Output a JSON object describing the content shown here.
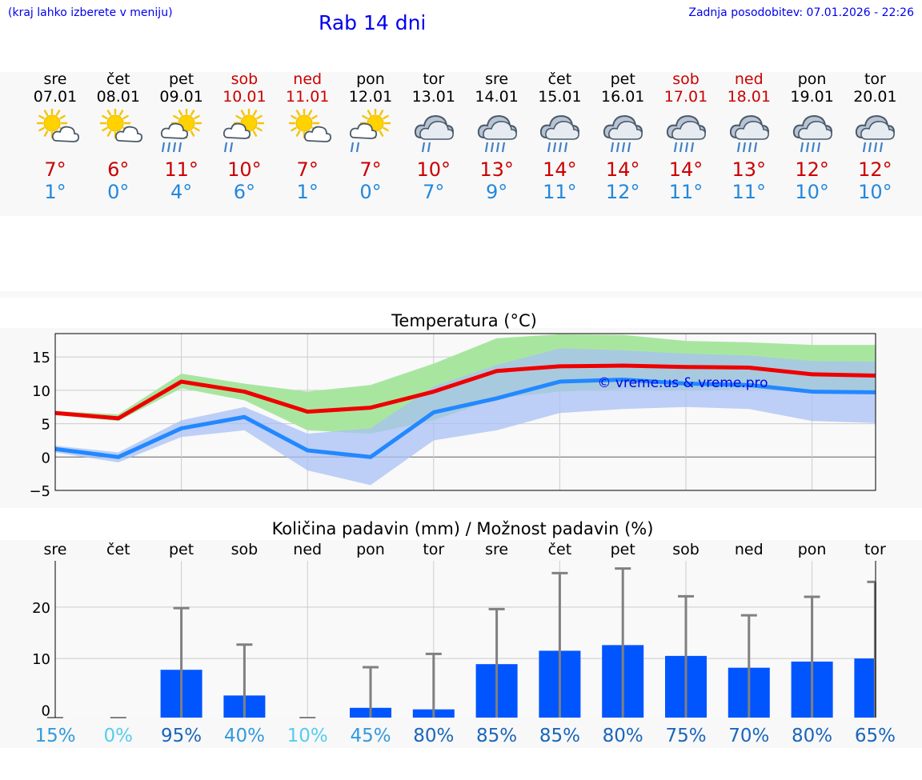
{
  "header": {
    "left_note": "(kraj lahko izberete v meniju)",
    "title": "Rab 14 dni",
    "updated": "Zadnja posodobitev: 07.01.2026 - 22:26"
  },
  "days": [
    {
      "name": "sre",
      "date": "07.01",
      "weekend": false,
      "icon": "sun-cloud-icon",
      "tmax": "7°",
      "tmin": "1°"
    },
    {
      "name": "čet",
      "date": "08.01",
      "weekend": false,
      "icon": "sun-cloud-icon",
      "tmax": "6°",
      "tmin": "0°"
    },
    {
      "name": "pet",
      "date": "09.01",
      "weekend": false,
      "icon": "sun-cloud-rain-icon",
      "tmax": "11°",
      "tmin": "4°"
    },
    {
      "name": "sob",
      "date": "10.01",
      "weekend": true,
      "icon": "sun-cloud-light-rain-icon",
      "tmax": "10°",
      "tmin": "6°"
    },
    {
      "name": "ned",
      "date": "11.01",
      "weekend": true,
      "icon": "sun-cloud-icon",
      "tmax": "7°",
      "tmin": "1°"
    },
    {
      "name": "pon",
      "date": "12.01",
      "weekend": false,
      "icon": "sun-cloud-light-rain-icon",
      "tmax": "7°",
      "tmin": "0°"
    },
    {
      "name": "tor",
      "date": "13.01",
      "weekend": false,
      "icon": "cloud-light-rain-icon",
      "tmax": "10°",
      "tmin": "7°"
    },
    {
      "name": "sre",
      "date": "14.01",
      "weekend": false,
      "icon": "cloud-rain-icon",
      "tmax": "13°",
      "tmin": "9°"
    },
    {
      "name": "čet",
      "date": "15.01",
      "weekend": false,
      "icon": "cloud-rain-icon",
      "tmax": "14°",
      "tmin": "11°"
    },
    {
      "name": "pet",
      "date": "16.01",
      "weekend": false,
      "icon": "cloud-rain-icon",
      "tmax": "14°",
      "tmin": "12°"
    },
    {
      "name": "sob",
      "date": "17.01",
      "weekend": true,
      "icon": "cloud-rain-icon",
      "tmax": "14°",
      "tmin": "11°"
    },
    {
      "name": "ned",
      "date": "18.01",
      "weekend": true,
      "icon": "cloud-rain-icon",
      "tmax": "13°",
      "tmin": "11°"
    },
    {
      "name": "pon",
      "date": "19.01",
      "weekend": false,
      "icon": "cloud-rain-icon",
      "tmax": "12°",
      "tmin": "10°"
    },
    {
      "name": "tor",
      "date": "20.01",
      "weekend": false,
      "icon": "cloud-rain-icon",
      "tmax": "12°",
      "tmin": "10°"
    }
  ],
  "colors": {
    "tmax": "#ee0000",
    "tmin": "#2288ff",
    "tmax_band": "#a8e6a0",
    "tmin_band": "#a8c0f4",
    "overlap_band": "#78c0a8",
    "precip_bar": "#0055ff",
    "whisker": "#808080"
  },
  "chart_data": [
    {
      "type": "line",
      "title": "Temperatura (°C)",
      "watermark": "© vreme.us & vreme.pro",
      "ylim": [
        -5,
        18.5
      ],
      "yticks": [
        -5,
        0,
        5,
        10,
        15
      ],
      "ytick_labels": [
        "−5",
        "0",
        "5",
        "10",
        "15"
      ],
      "series": [
        {
          "name": "tmax",
          "values": [
            6.6,
            5.8,
            11.3,
            9.8,
            6.8,
            7.4,
            9.8,
            12.9,
            13.6,
            13.7,
            13.5,
            13.4,
            12.4,
            12.2
          ]
        },
        {
          "name": "tmin",
          "values": [
            1.2,
            0.0,
            4.3,
            6.0,
            1.0,
            0.0,
            6.7,
            8.8,
            11.3,
            11.6,
            11.0,
            10.8,
            9.8,
            9.7
          ]
        }
      ],
      "bands": [
        {
          "name": "tmax_range",
          "low": [
            6.3,
            5.4,
            10.3,
            8.5,
            4.0,
            3.5,
            5.5,
            8.8,
            9.8,
            10.2,
            10.0,
            10.2,
            9.8,
            9.8
          ],
          "high": [
            6.9,
            6.4,
            12.5,
            11.0,
            9.8,
            10.8,
            14.0,
            17.8,
            18.4,
            18.3,
            17.4,
            17.2,
            16.8,
            16.8
          ]
        },
        {
          "name": "tmin_range",
          "low": [
            0.7,
            -0.8,
            3.0,
            4.0,
            -2.0,
            -4.2,
            2.5,
            4.0,
            6.6,
            7.2,
            7.5,
            7.2,
            5.4,
            5.1
          ],
          "high": [
            1.7,
            0.7,
            5.5,
            7.5,
            3.5,
            4.3,
            10.6,
            13.8,
            16.3,
            16.0,
            15.5,
            15.2,
            14.4,
            14.3
          ]
        }
      ]
    },
    {
      "type": "bar",
      "title": "Količina padavin (mm) / Možnost padavin (%)",
      "categories": [
        "sre",
        "čet",
        "pet",
        "sob",
        "ned",
        "pon",
        "tor",
        "sre",
        "čet",
        "pet",
        "sob",
        "ned",
        "pon",
        "tor"
      ],
      "ylim": [
        -1.5,
        29
      ],
      "yticks": [
        0,
        10,
        20
      ],
      "ytick_labels": [
        "0",
        "10",
        "20"
      ],
      "values": [
        0,
        0,
        7.8,
        2.8,
        0,
        0.4,
        0.1,
        8.9,
        11.5,
        12.6,
        10.5,
        8.2,
        9.4,
        10.0
      ],
      "whisker_max": [
        0,
        0,
        19.8,
        12.7,
        0,
        8.3,
        10.9,
        19.6,
        26.6,
        27.5,
        22.1,
        18.4,
        22.0,
        24.9
      ],
      "chance": [
        "15%",
        "0%",
        "95%",
        "40%",
        "10%",
        "45%",
        "80%",
        "85%",
        "85%",
        "80%",
        "75%",
        "70%",
        "80%",
        "65%"
      ],
      "chance_values": [
        15,
        0,
        95,
        40,
        10,
        45,
        80,
        85,
        85,
        80,
        75,
        70,
        80,
        65
      ]
    }
  ]
}
